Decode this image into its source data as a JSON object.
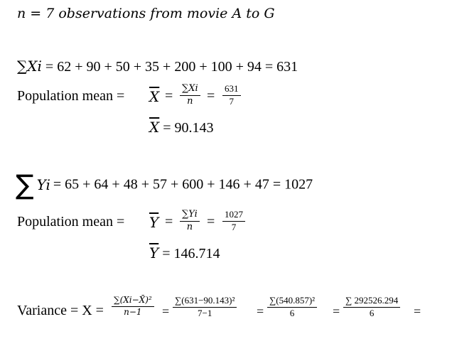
{
  "header": "n = 7 observations from movie A to G",
  "x": {
    "sum_lhs": "∑Xi",
    "sum_rhs": "= 62 + 90 + 50 + 35 + 200 + 100 + 94 = 631",
    "label": "Population mean =",
    "symbol": "X",
    "eq": "=",
    "frac1_num": "∑Xi",
    "frac1_den": "n",
    "frac2_num": "631",
    "frac2_den": "7",
    "result": "= 90.143"
  },
  "y": {
    "sigma": "∑",
    "sum_var": "Yi",
    "sum_rhs": "= 65 + 64 + 48 + 57 + 600 + 146 + 47 = 1027",
    "label": "Population mean =",
    "symbol": "Y",
    "eq": "=",
    "frac1_num": "∑Yi",
    "frac1_den": "n",
    "frac2_num": "1027",
    "frac2_den": "7",
    "result": "= 146.714"
  },
  "variance": {
    "label": "Variance = X =",
    "frac1_num": "∑(Xi−X̄)²",
    "frac1_den": "n−1",
    "frac2_num": "∑(631−90.143)²",
    "frac2_den": "7−1",
    "frac3_num": "∑(540.857)²",
    "frac3_den": "6",
    "frac4_num": "∑ 292526.294",
    "frac4_den": "6",
    "eq": "="
  }
}
